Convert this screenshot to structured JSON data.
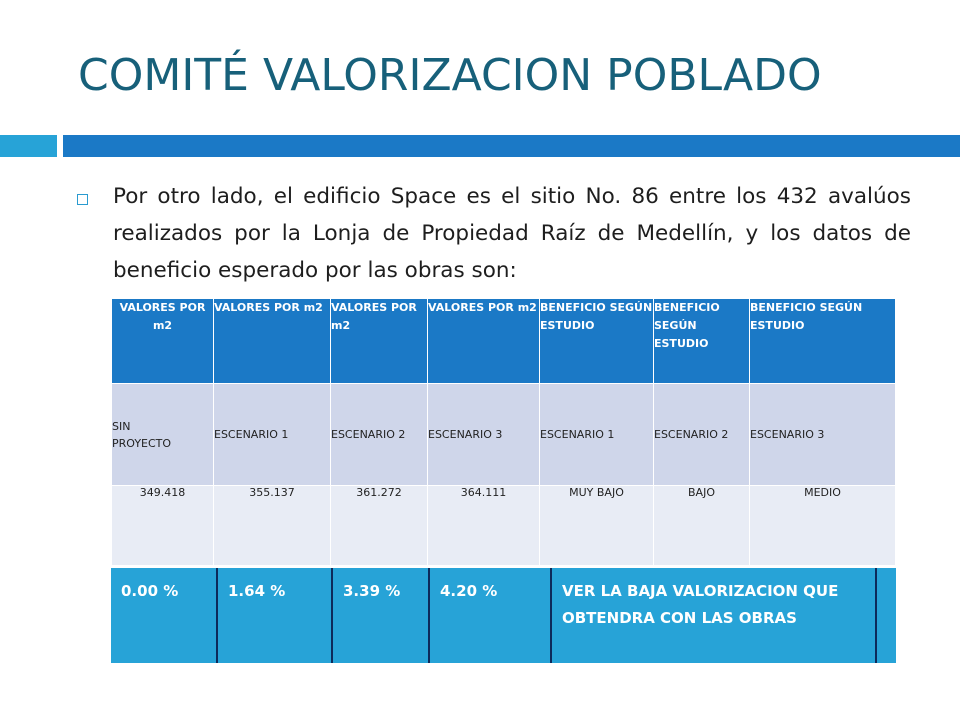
{
  "slide": {
    "title": "COMITÉ VALORIZACION POBLADO",
    "bullet": "Por otro lado, el edificio Space es el sitio No. 86 entre los 432 avalúos realizados por la Lonja de Propiedad Raíz de Medellín, y los datos de beneficio esperado por las obras son:",
    "bullet_icon": "hollow-square-bullet",
    "colors": {
      "title": "#17607a",
      "header": "#1b79c6",
      "accent": "#27a3d7"
    }
  },
  "table": {
    "headers": [
      "VALORES POR m2",
      "VALORES POR m2",
      "VALORES POR m2",
      "VALORES POR m2",
      "BENEFICIO SEGÚN ESTUDIO",
      "BENEFICIO SEGÚN ESTUDIO",
      "BENEFICIO SEGÚN ESTUDIO"
    ],
    "scenarios": [
      "SIN PROYECTO",
      "ESCENARIO 1",
      "ESCENARIO 2",
      "ESCENARIO 3",
      "ESCENARIO 1",
      "ESCENARIO 2",
      "ESCENARIO 3"
    ],
    "values": [
      "349.418",
      "355.137",
      "361.272",
      "364.111",
      "MUY BAJO",
      "BAJO",
      "MEDIO"
    ]
  },
  "percent_row": [
    "0.00 %",
    "1.64 %",
    "3.39 %",
    "4.20 %",
    "VER LA BAJA VALORIZACION QUE OBTENDRA CON LAS OBRAS",
    ""
  ]
}
